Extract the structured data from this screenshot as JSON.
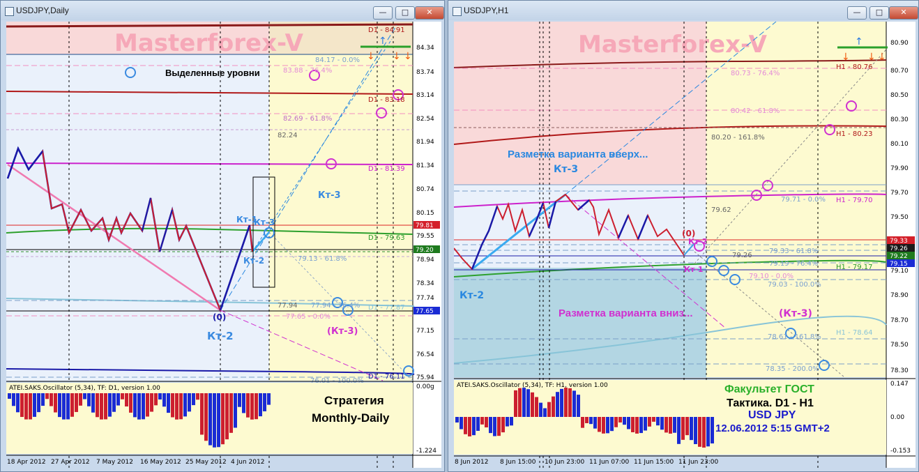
{
  "left_window": {
    "title": "USDJPY,Daily",
    "watermark": "Masterforex-V",
    "highlighted_levels_label": "Выделенные уровни",
    "fib_labels": [
      "84.17 - 0.0%",
      "83.88 - 76.4%",
      "82.69 - 61.8%",
      "82.24",
      "79.13 - 61.8%",
      "77.94",
      "77.94 - 76.4%",
      "77.65 - 0.0%",
      "76.01 - 100.0%"
    ],
    "level_labels": [
      "D1 - 84.91",
      "D1 - 83.18",
      "D1 - 81.39",
      "D1 - 79.63",
      "D1 - 77.87",
      "D1 - 76.11"
    ],
    "wave_labels": {
      "kt3_up": "Кт-3",
      "kt1": "Кт-1",
      "kt3": "Кт-3",
      "kt2_small": "Кт-2",
      "zero": "(0)",
      "kt2": "Кт-2",
      "kt3_down": "(Кт-3)"
    },
    "price_axis": [
      "84.34",
      "83.74",
      "83.14",
      "82.54",
      "81.94",
      "81.34",
      "80.74",
      "80.15",
      "79.55",
      "78.94",
      "78.34",
      "77.74",
      "77.15",
      "76.54",
      "75.94"
    ],
    "price_tags": [
      {
        "value": "79.81",
        "color": "#d4202a"
      },
      {
        "value": "79.20",
        "color": "#1e7a1e"
      },
      {
        "value": "77.65",
        "color": "#1a2bd4"
      }
    ],
    "date_axis": [
      "18 Apr 2012",
      "27 Apr 2012",
      "7 May 2012",
      "16 May 2012",
      "25 May 2012",
      "4 Jun 2012"
    ],
    "oscillator": {
      "title": "ATEI.SAKS.Oscillator (5,34), TF: D1, version 1.00",
      "axis_top": "0.00g",
      "axis_bottom": "-1.224"
    },
    "strategy_line1": "Стратегия",
    "strategy_line2": "Monthly-Daily"
  },
  "right_window": {
    "title": "USDJPY,H1",
    "watermark": "Masterforex-V",
    "fib_labels": [
      "80.73 - 76.4%",
      "80.42 - 61.8%",
      "80.20 - 161.8%",
      "79.62",
      "79.71 - 0.0%",
      "79.26",
      "79.33 - 61.8%",
      "79.19 - 76.4%",
      "79.10 - 0.0%",
      "79.03 - 100.0%",
      "78.61 - 161.8%",
      "78.35 - 200.0%"
    ],
    "level_labels": [
      "H1 - 80.76",
      "H1 - 80.23",
      "H1 - 79.70",
      "H1 - 79.17",
      "H1 - 78.64"
    ],
    "wave_labels": {
      "kt3": "Кт-3",
      "kt2": "Кт-2",
      "zero": "(0)",
      "kt2_small": "Кт-2",
      "kt1": "Кт-1",
      "kt3_down": "(Кт-3)"
    },
    "variant_up": "Разметка варианта вверх...",
    "variant_down": "Разметка варианта вниз...",
    "price_axis": [
      "80.90",
      "80.70",
      "80.50",
      "80.30",
      "80.10",
      "79.90",
      "79.70",
      "79.50",
      "79.10",
      "78.90",
      "78.70",
      "78.50",
      "78.30"
    ],
    "price_tags": [
      {
        "value": "79.33",
        "color": "#d4202a"
      },
      {
        "value": "79.26",
        "color": "#1a1a1a"
      },
      {
        "value": "79.22",
        "color": "#1e7a1e"
      },
      {
        "value": "79.15",
        "color": "#1a2bd4"
      }
    ],
    "date_axis": [
      "8 Jun 2012",
      "8 Jun 15:00",
      "10 Jun 23:00",
      "11 Jun 07:00",
      "11 Jun 15:00",
      "11 Jun 23:00"
    ],
    "oscillator": {
      "title": "ATEI.SAKS.Oscillator (5,34), TF: H1, version 1.00",
      "axis_top": "0.147",
      "axis_mid": "0.00",
      "axis_bottom": "-0.153"
    },
    "faculty": "Факультет ГОСТ",
    "tactic": "Тактика. D1 - H1",
    "symbol": "USD JPY",
    "datetime": "12.06.2012 5:15 GMT+2"
  },
  "colors": {
    "upper_zone": "#f9d9d9",
    "lower_zone": "#eaf1fb",
    "future_zone": "#fdfad0",
    "blue_zone": "#b3d6e3",
    "bull": "#1a1aa8",
    "bear": "#cc1f2f"
  }
}
